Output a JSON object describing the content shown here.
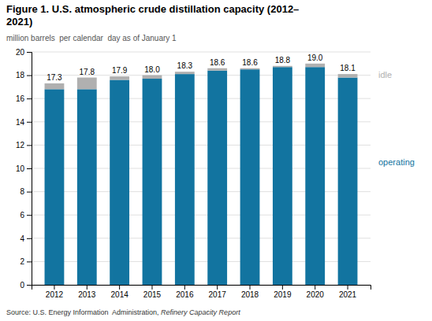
{
  "chart_data": {
    "type": "bar",
    "stacked": true,
    "title": "Figure 1. U.S. atmospheric crude distillation capacity (2012–\n2021)",
    "subtitle": "million barrels  per calendar  day as of January 1",
    "source": "Source: U.S. Energy Information  Administration, ",
    "source_title": "Refinery Capacity Report",
    "categories": [
      "2012",
      "2013",
      "2014",
      "2015",
      "2016",
      "2017",
      "2018",
      "2019",
      "2020",
      "2021"
    ],
    "series": [
      {
        "name": "operating",
        "color": "#1274a0",
        "values": [
          16.8,
          16.8,
          17.6,
          17.7,
          18.1,
          18.4,
          18.5,
          18.7,
          18.7,
          17.8
        ]
      },
      {
        "name": "idle",
        "color": "#b0b0b0",
        "values": [
          0.5,
          1.0,
          0.3,
          0.3,
          0.2,
          0.2,
          0.1,
          0.1,
          0.3,
          0.3
        ]
      }
    ],
    "totals": [
      17.3,
      17.8,
      17.9,
      18.0,
      18.3,
      18.6,
      18.6,
      18.8,
      19.0,
      18.1
    ],
    "total_labels": [
      "17.3",
      "17.8",
      "17.9",
      "18.0",
      "18.3",
      "18.6",
      "18.6",
      "18.8",
      "19.0",
      "18.1"
    ],
    "ylim": [
      0,
      20
    ],
    "yticks": [
      0,
      2,
      4,
      6,
      8,
      10,
      12,
      14,
      16,
      18,
      20
    ],
    "grid": true
  }
}
